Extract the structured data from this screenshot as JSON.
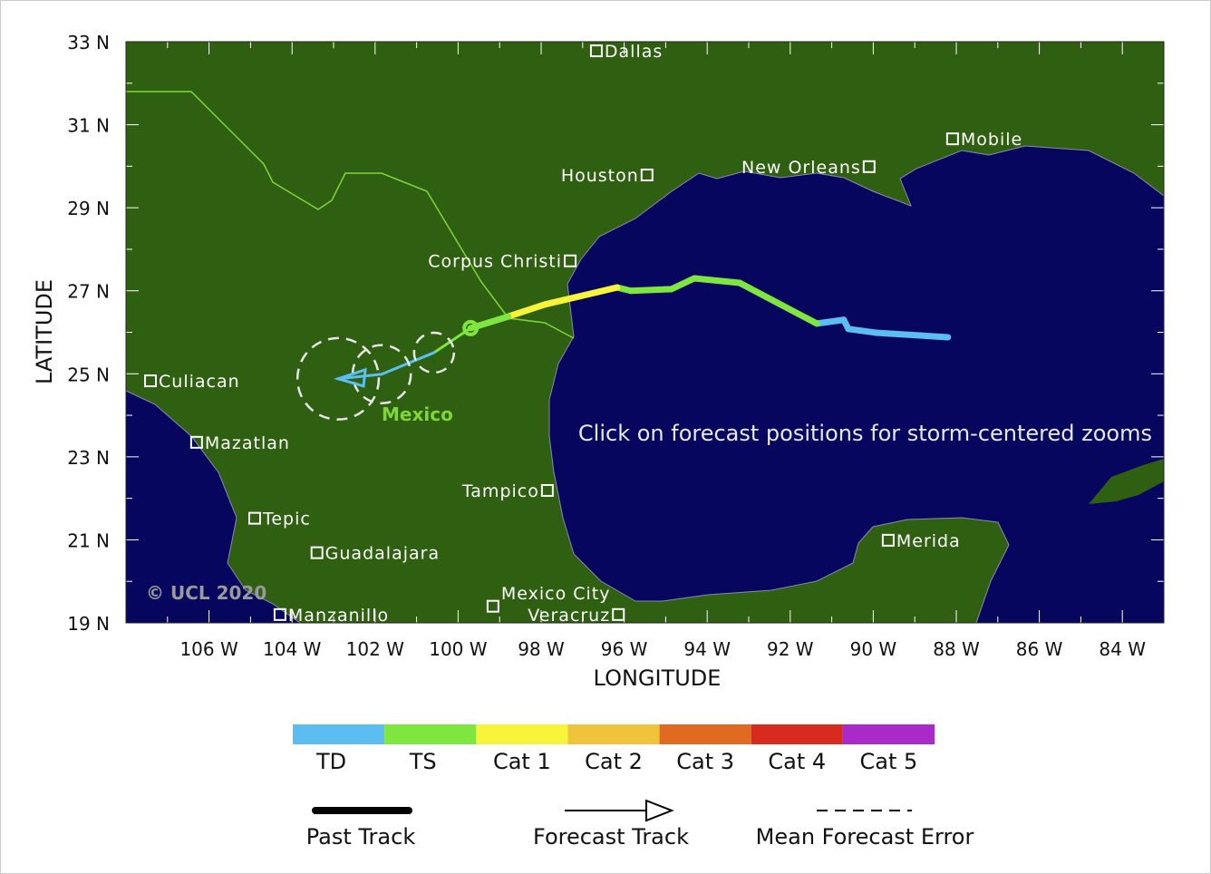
{
  "axes": {
    "ylabel": "LATITUDE",
    "xlabel": "LONGITUDE",
    "lat_ticks": [
      "33 N",
      "31 N",
      "29 N",
      "27 N",
      "25 N",
      "23 N",
      "21 N",
      "19 N"
    ],
    "lat_values": [
      33,
      31,
      29,
      27,
      25,
      23,
      21,
      19
    ],
    "lon_ticks": [
      "106 W",
      "104 W",
      "102 W",
      "100 W",
      "98 W",
      "96 W",
      "94 W",
      "92 W",
      "90 W",
      "88 W",
      "86 W",
      "84 W"
    ],
    "lon_values": [
      -106,
      -104,
      -102,
      -100,
      -98,
      -96,
      -94,
      -92,
      -90,
      -88,
      -86,
      -84
    ],
    "lon_range": [
      -108,
      -83
    ],
    "lat_range": [
      19,
      33
    ]
  },
  "colors": {
    "land": "#2f5f10",
    "ocean": "#06065e",
    "border": "#7ed63a",
    "city": "#ffffff"
  },
  "country_label": "Mexico",
  "watermark": "© UCL 2020",
  "instruction": "Click on forecast positions for storm-centered zooms",
  "cities": [
    {
      "name": "Dallas",
      "lon": -96.67,
      "lat": 32.78,
      "side": "right"
    },
    {
      "name": "Houston",
      "lon": -95.45,
      "lat": 29.79,
      "side": "left"
    },
    {
      "name": "New Orleans",
      "lon": -90.1,
      "lat": 29.99,
      "side": "left"
    },
    {
      "name": "Mobile",
      "lon": -88.09,
      "lat": 30.66,
      "side": "right"
    },
    {
      "name": "Corpus Christi",
      "lon": -97.3,
      "lat": 27.72,
      "side": "left"
    },
    {
      "name": "Culiacan",
      "lon": -107.41,
      "lat": 24.83,
      "side": "right"
    },
    {
      "name": "Mazatlan",
      "lon": -106.3,
      "lat": 23.35,
      "side": "right"
    },
    {
      "name": "Tampico",
      "lon": -97.85,
      "lat": 22.19,
      "side": "left"
    },
    {
      "name": "Tepic",
      "lon": -104.9,
      "lat": 21.52,
      "side": "right"
    },
    {
      "name": "Guadalajara",
      "lon": -103.4,
      "lat": 20.69,
      "side": "right"
    },
    {
      "name": "Merida",
      "lon": -89.64,
      "lat": 20.99,
      "side": "right"
    },
    {
      "name": "Manzanillo",
      "lon": -104.29,
      "lat": 19.2,
      "side": "right"
    },
    {
      "name": "Mexico City",
      "lon": -99.16,
      "lat": 19.4,
      "side": "right"
    },
    {
      "name": "Veracruz",
      "lon": -96.14,
      "lat": 19.2,
      "side": "left"
    }
  ],
  "past_track": [
    {
      "lon": -88.2,
      "lat": 25.88,
      "cat": "TD"
    },
    {
      "lon": -89.94,
      "lat": 25.99,
      "cat": "TD"
    },
    {
      "lon": -90.6,
      "lat": 26.08,
      "cat": "TD"
    },
    {
      "lon": -90.71,
      "lat": 26.3,
      "cat": "TD"
    },
    {
      "lon": -91.36,
      "lat": 26.21,
      "cat": "TD"
    },
    {
      "lon": -93.22,
      "lat": 27.19,
      "cat": "TS"
    },
    {
      "lon": -94.31,
      "lat": 27.3,
      "cat": "TS"
    },
    {
      "lon": -94.86,
      "lat": 27.04,
      "cat": "TS"
    },
    {
      "lon": -95.84,
      "lat": 27.0,
      "cat": "TS"
    },
    {
      "lon": -96.17,
      "lat": 27.08,
      "cat": "TS"
    },
    {
      "lon": -97.91,
      "lat": 26.67,
      "cat": "Cat 1"
    },
    {
      "lon": -98.79,
      "lat": 26.38,
      "cat": "Cat 1"
    },
    {
      "lon": -99.7,
      "lat": 26.1,
      "cat": "TS"
    }
  ],
  "forecast_track": [
    {
      "lon": -99.7,
      "lat": 26.1,
      "cat": "TS",
      "error_deg": 0
    },
    {
      "lon": -100.58,
      "lat": 25.51,
      "cat": "TS",
      "error_deg": 0.48
    },
    {
      "lon": -101.84,
      "lat": 24.99,
      "cat": "TD",
      "error_deg": 0.7
    },
    {
      "lon": -102.89,
      "lat": 24.88,
      "cat": "TD",
      "error_deg": 0.98
    }
  ],
  "legend": {
    "categories": [
      {
        "label": "TD",
        "color": "#5cbef0"
      },
      {
        "label": "TS",
        "color": "#7ee63e"
      },
      {
        "label": "Cat 1",
        "color": "#f7f43a"
      },
      {
        "label": "Cat 2",
        "color": "#f0c43a"
      },
      {
        "label": "Cat 3",
        "color": "#e06a22"
      },
      {
        "label": "Cat 4",
        "color": "#d82a1e"
      },
      {
        "label": "Cat 5",
        "color": "#a92ac8"
      }
    ],
    "past_track": "Past Track",
    "forecast_track": "Forecast Track",
    "mean_error": "Mean Forecast Error"
  }
}
